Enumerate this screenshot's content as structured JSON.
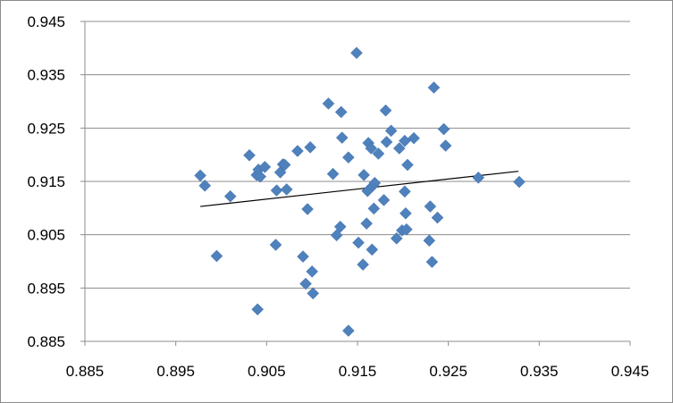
{
  "chart_data": {
    "type": "scatter",
    "title": "",
    "xlabel": "",
    "ylabel": "",
    "xlim": [
      0.885,
      0.945
    ],
    "ylim": [
      0.885,
      0.945
    ],
    "xticks": [
      0.885,
      0.895,
      0.905,
      0.915,
      0.925,
      0.935,
      0.945
    ],
    "yticks": [
      0.885,
      0.895,
      0.905,
      0.915,
      0.925,
      0.935,
      0.945
    ],
    "xtick_labels": [
      "0.885",
      "0.895",
      "0.905",
      "0.915",
      "0.925",
      "0.935",
      "0.945"
    ],
    "ytick_labels": [
      "0.885",
      "0.895",
      "0.905",
      "0.915",
      "0.925",
      "0.935",
      "0.945"
    ],
    "grid": "horizontal",
    "legend": "none",
    "marker": "diamond",
    "point_color": "#4f81bd",
    "trendline": {
      "type": "linear",
      "x": [
        0.8977,
        0.9327
      ],
      "y": [
        0.9103,
        0.9169
      ],
      "color": "#000000"
    },
    "series": [
      {
        "points": [
          [
            0.8977,
            0.9161
          ],
          [
            0.8982,
            0.9142
          ],
          [
            0.8995,
            0.901
          ],
          [
            0.901,
            0.9122
          ],
          [
            0.9031,
            0.9199
          ],
          [
            0.9039,
            0.9162
          ],
          [
            0.9041,
            0.9172
          ],
          [
            0.9043,
            0.9159
          ],
          [
            0.9048,
            0.9177
          ],
          [
            0.904,
            0.891
          ],
          [
            0.906,
            0.9031
          ],
          [
            0.9061,
            0.9133
          ],
          [
            0.9065,
            0.9167
          ],
          [
            0.9068,
            0.9182
          ],
          [
            0.907,
            0.9181
          ],
          [
            0.9072,
            0.9135
          ],
          [
            0.9084,
            0.9207
          ],
          [
            0.909,
            0.9009
          ],
          [
            0.9093,
            0.8958
          ],
          [
            0.9095,
            0.9098
          ],
          [
            0.9098,
            0.9214
          ],
          [
            0.91,
            0.8981
          ],
          [
            0.9101,
            0.894
          ],
          [
            0.9118,
            0.9296
          ],
          [
            0.9123,
            0.9164
          ],
          [
            0.9127,
            0.9049
          ],
          [
            0.9131,
            0.9065
          ],
          [
            0.9132,
            0.928
          ],
          [
            0.9133,
            0.9232
          ],
          [
            0.914,
            0.9195
          ],
          [
            0.914,
            0.887
          ],
          [
            0.9149,
            0.9391
          ],
          [
            0.9151,
            0.9035
          ],
          [
            0.9156,
            0.8994
          ],
          [
            0.9157,
            0.9162
          ],
          [
            0.916,
            0.9071
          ],
          [
            0.9161,
            0.9132
          ],
          [
            0.9162,
            0.9222
          ],
          [
            0.9165,
            0.9212
          ],
          [
            0.9166,
            0.9022
          ],
          [
            0.9167,
            0.9142
          ],
          [
            0.9168,
            0.9099
          ],
          [
            0.9169,
            0.9147
          ],
          [
            0.9173,
            0.9202
          ],
          [
            0.9179,
            0.9115
          ],
          [
            0.9181,
            0.9283
          ],
          [
            0.9182,
            0.9224
          ],
          [
            0.9187,
            0.9245
          ],
          [
            0.9193,
            0.9043
          ],
          [
            0.9196,
            0.9212
          ],
          [
            0.9199,
            0.9058
          ],
          [
            0.9202,
            0.9131
          ],
          [
            0.9202,
            0.9226
          ],
          [
            0.9203,
            0.909
          ],
          [
            0.9204,
            0.906
          ],
          [
            0.9205,
            0.9181
          ],
          [
            0.9212,
            0.9231
          ],
          [
            0.9229,
            0.9039
          ],
          [
            0.923,
            0.9103
          ],
          [
            0.9232,
            0.8999
          ],
          [
            0.9234,
            0.9326
          ],
          [
            0.9238,
            0.9082
          ],
          [
            0.9245,
            0.9248
          ],
          [
            0.9247,
            0.9217
          ],
          [
            0.9283,
            0.9157
          ],
          [
            0.9328,
            0.9149
          ]
        ]
      }
    ]
  }
}
